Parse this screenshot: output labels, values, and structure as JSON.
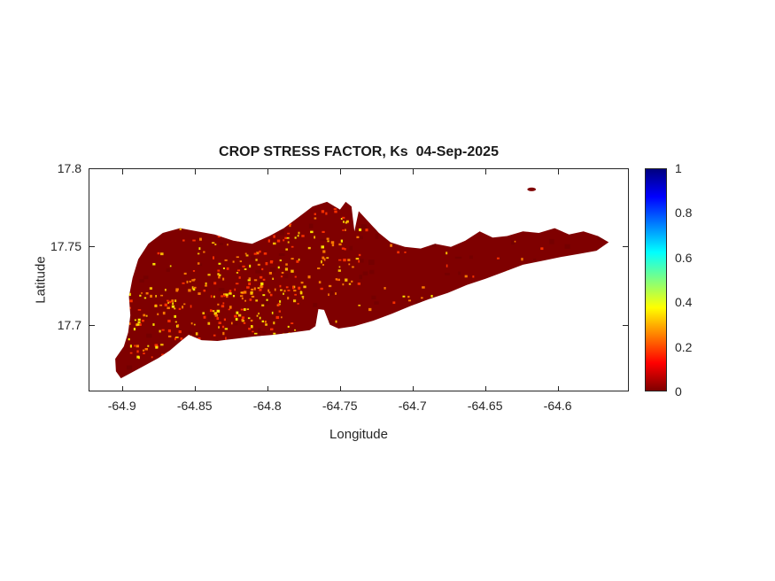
{
  "chart_data": {
    "type": "heatmap",
    "title": "CROP STRESS FACTOR, Ks  04-Sep-2025",
    "xlabel": "Longitude",
    "ylabel": "Latitude",
    "xlim": [
      -64.923,
      -64.551
    ],
    "ylim": [
      17.6576,
      17.8
    ],
    "grid": false,
    "x_ticks": [
      -64.9,
      -64.85,
      -64.8,
      -64.75,
      -64.7,
      -64.65,
      -64.6
    ],
    "x_tick_labels": [
      "-64.9",
      "-64.85",
      "-64.8",
      "-64.75",
      "-64.7",
      "-64.65",
      "-64.6"
    ],
    "y_ticks": [
      17.8,
      17.75,
      17.7
    ],
    "y_tick_labels": [
      "17.8",
      "17.75",
      "17.7"
    ],
    "value_summary": "Ks near 0 (dark red) over most of the island with scattered cells around 0.1-0.45 (red/orange/yellow speckles)",
    "base_color": "#7f0000",
    "colorbar": {
      "position": "right",
      "ticks": [
        0,
        0.2,
        0.4,
        0.6,
        0.8,
        1
      ],
      "tick_labels": [
        "0",
        "0.2",
        "0.4",
        "0.6",
        "0.8",
        "1"
      ],
      "colormap": "jet-reversed (0=dark red, 1=dark blue)",
      "stops": [
        {
          "value": 0,
          "color": "#7f0000"
        },
        {
          "value": 0.125,
          "color": "#ff0000"
        },
        {
          "value": 0.375,
          "color": "#ffff00"
        },
        {
          "value": 0.625,
          "color": "#00ffff"
        },
        {
          "value": 0.875,
          "color": "#0000ff"
        },
        {
          "value": 1,
          "color": "#00007f"
        }
      ]
    },
    "island_outline": [
      [
        -64.906,
        17.678
      ],
      [
        -64.9,
        17.686
      ],
      [
        -64.897,
        17.695
      ],
      [
        -64.8955,
        17.706
      ],
      [
        -64.8965,
        17.718
      ],
      [
        -64.894,
        17.73
      ],
      [
        -64.89,
        17.742
      ],
      [
        -64.883,
        17.752
      ],
      [
        -64.873,
        17.759
      ],
      [
        -64.861,
        17.762
      ],
      [
        -64.849,
        17.76
      ],
      [
        -64.837,
        17.758
      ],
      [
        -64.824,
        17.754
      ],
      [
        -64.811,
        17.752
      ],
      [
        -64.799,
        17.757
      ],
      [
        -64.789,
        17.762
      ],
      [
        -64.779,
        17.769
      ],
      [
        -64.769,
        17.776
      ],
      [
        -64.759,
        17.779
      ],
      [
        -64.75,
        17.774
      ],
      [
        -64.746,
        17.779
      ],
      [
        -64.742,
        17.776
      ],
      [
        -64.74,
        17.76
      ],
      [
        -64.737,
        17.773
      ],
      [
        -64.731,
        17.767
      ],
      [
        -64.723,
        17.759
      ],
      [
        -64.715,
        17.753
      ],
      [
        -64.705,
        17.75
      ],
      [
        -64.694,
        17.749
      ],
      [
        -64.684,
        17.752
      ],
      [
        -64.673,
        17.75
      ],
      [
        -64.663,
        17.754
      ],
      [
        -64.653,
        17.76
      ],
      [
        -64.644,
        17.756
      ],
      [
        -64.634,
        17.757
      ],
      [
        -64.623,
        17.76
      ],
      [
        -64.612,
        17.759
      ],
      [
        -64.601,
        17.762
      ],
      [
        -64.591,
        17.758
      ],
      [
        -64.581,
        17.76
      ],
      [
        -64.571,
        17.757
      ],
      [
        -64.5635,
        17.753
      ],
      [
        -64.572,
        17.7475
      ],
      [
        -64.584,
        17.7455
      ],
      [
        -64.597,
        17.7435
      ],
      [
        -64.61,
        17.741
      ],
      [
        -64.623,
        17.7385
      ],
      [
        -64.636,
        17.734
      ],
      [
        -64.649,
        17.7295
      ],
      [
        -64.662,
        17.7255
      ],
      [
        -64.675,
        17.7205
      ],
      [
        -64.688,
        17.7165
      ],
      [
        -64.701,
        17.712
      ],
      [
        -64.714,
        17.707
      ],
      [
        -64.727,
        17.7025
      ],
      [
        -64.74,
        17.699
      ],
      [
        -64.751,
        17.6975
      ],
      [
        -64.757,
        17.7
      ],
      [
        -64.761,
        17.7095
      ],
      [
        -64.765,
        17.71
      ],
      [
        -64.767,
        17.699
      ],
      [
        -64.771,
        17.6965
      ],
      [
        -64.783,
        17.695
      ],
      [
        -64.796,
        17.6935
      ],
      [
        -64.809,
        17.6925
      ],
      [
        -64.822,
        17.691
      ],
      [
        -64.835,
        17.6895
      ],
      [
        -64.846,
        17.69
      ],
      [
        -64.855,
        17.6935
      ],
      [
        -64.861,
        17.689
      ],
      [
        -64.868,
        17.6835
      ],
      [
        -64.876,
        17.6785
      ],
      [
        -64.885,
        17.674
      ],
      [
        -64.894,
        17.6695
      ],
      [
        -64.902,
        17.6655
      ],
      [
        -64.9055,
        17.67
      ]
    ],
    "offshore_islet": {
      "lon": -64.617,
      "lat": 17.787,
      "rx": 0.003,
      "ry": 0.0012
    },
    "speckles": {
      "seed": 42,
      "count": 540,
      "colors": [
        "#ff3300",
        "#ff8000",
        "#ffc000",
        "#ffee00"
      ],
      "weights": [
        0.35,
        0.3,
        0.2,
        0.15
      ]
    }
  }
}
